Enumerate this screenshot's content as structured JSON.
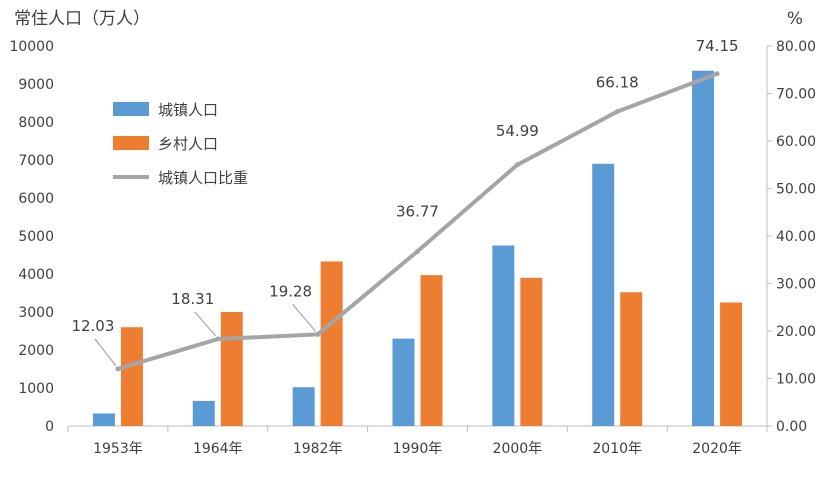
{
  "chart_data": {
    "type": "bar",
    "categories": [
      "1953年",
      "1964年",
      "1982年",
      "1990年",
      "2000年",
      "2010年",
      "2020年"
    ],
    "series": [
      {
        "name": "城镇人口",
        "kind": "bar",
        "axis": "left",
        "color": "#5B9BD5",
        "values": [
          330,
          660,
          1020,
          2300,
          4750,
          6900,
          9350
        ]
      },
      {
        "name": "乡村人口",
        "kind": "bar",
        "axis": "left",
        "color": "#ED7D31",
        "values": [
          2600,
          3000,
          4330,
          3970,
          3900,
          3520,
          3250
        ]
      },
      {
        "name": "城镇人口比重",
        "kind": "line",
        "axis": "right",
        "color": "#A5A5A5",
        "values": [
          12.03,
          18.31,
          19.28,
          36.77,
          54.99,
          66.18,
          74.15
        ],
        "labels": [
          "12.03",
          "18.31",
          "19.28",
          "36.77",
          "54.99",
          "66.18",
          "74.15"
        ]
      }
    ],
    "ylabel_left": "常住人口（万人）",
    "ylabel_right": "%",
    "ylim_left": [
      0,
      10000
    ],
    "ylim_right": [
      0,
      80
    ],
    "yticks_left": [
      "0",
      "1000",
      "2000",
      "3000",
      "4000",
      "5000",
      "6000",
      "7000",
      "8000",
      "9000",
      "10000"
    ],
    "yticks_right": [
      "0.00",
      "10.00",
      "20.00",
      "30.00",
      "40.00",
      "50.00",
      "60.00",
      "70.00",
      "80.00"
    ],
    "legend": {
      "position": "upper-left"
    },
    "grid": false
  }
}
